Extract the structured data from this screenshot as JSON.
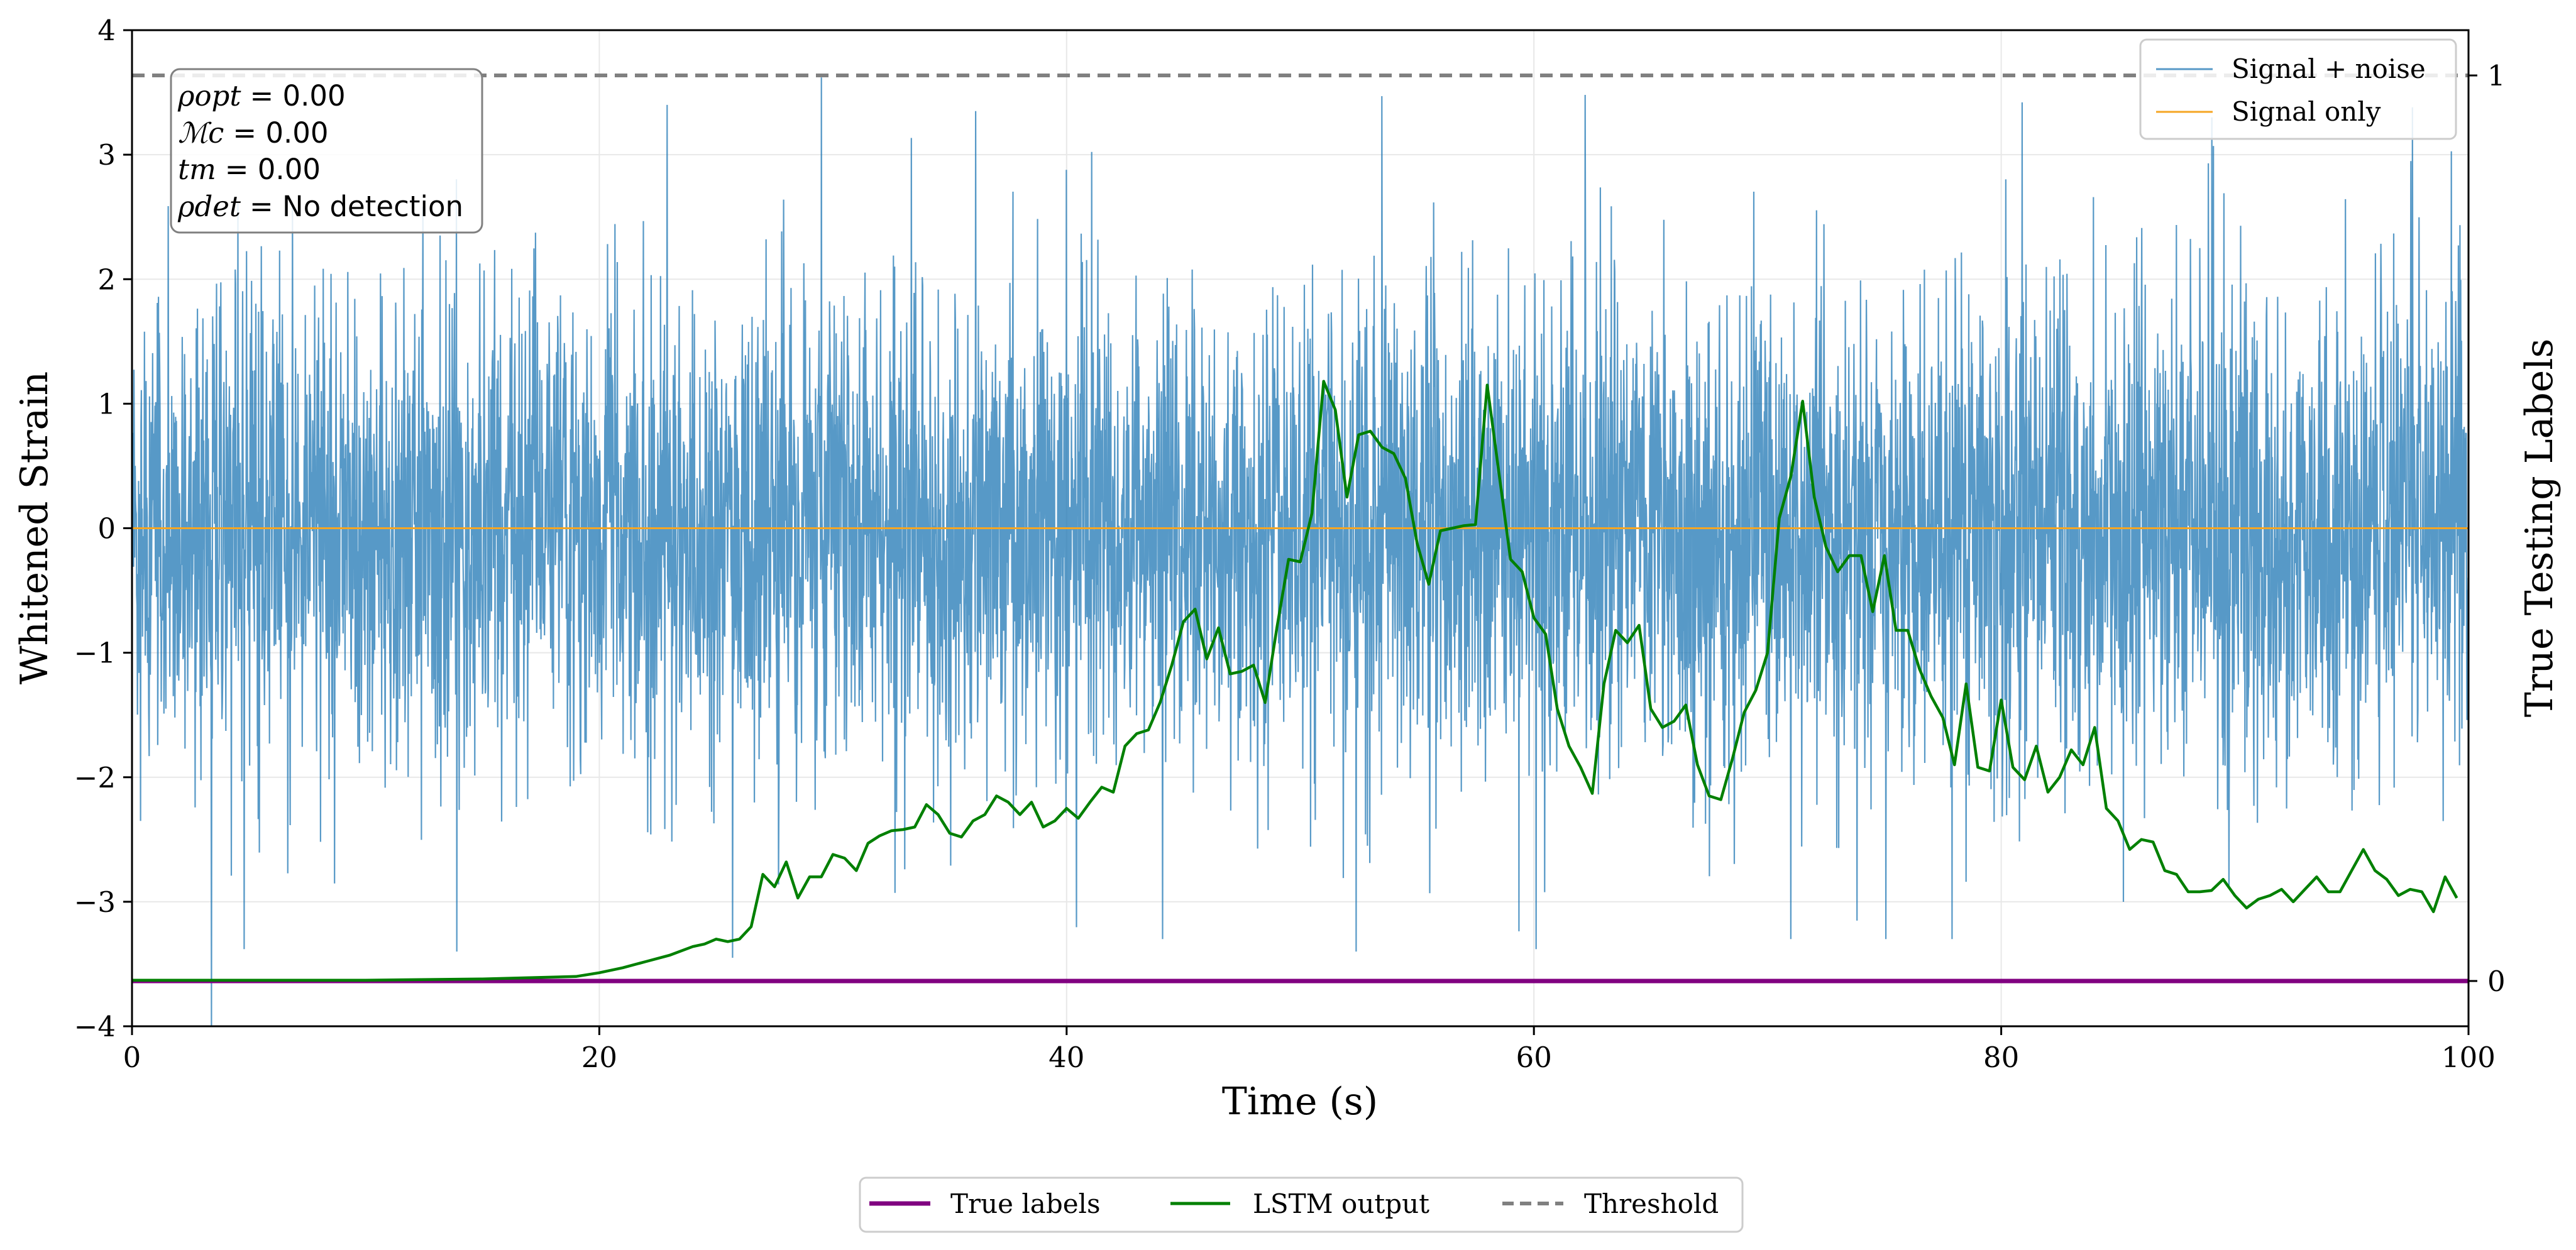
{
  "chart_data": {
    "type": "line",
    "title": "",
    "xlabel": "Time (s)",
    "ylabel": "Whitened Strain",
    "y2label": "True Testing Labels",
    "xlim": [
      0,
      100
    ],
    "ylim": [
      -4,
      4
    ],
    "y2lim": [
      -0.05,
      1.05
    ],
    "xticks": [
      0,
      20,
      40,
      60,
      80,
      100
    ],
    "xtick_labels": [
      "0",
      "20",
      "40",
      "60",
      "80",
      "100"
    ],
    "yticks": [
      -4,
      -3,
      -2,
      -1,
      0,
      1,
      2,
      3,
      4
    ],
    "ytick_labels": [
      "−4",
      "−3",
      "−2",
      "−1",
      "0",
      "1",
      "2",
      "3",
      "4"
    ],
    "y2ticks": [
      0,
      1
    ],
    "y2tick_labels": [
      "0",
      "1"
    ],
    "grid": true,
    "noise_spikes": [
      {
        "t": 3.4,
        "v": -4.0
      },
      {
        "t": 29.5,
        "v": 3.62
      },
      {
        "t": 22.9,
        "v": 3.4
      },
      {
        "t": 25.7,
        "v": -3.45
      },
      {
        "t": 60.1,
        "v": -3.38
      },
      {
        "t": 13.9,
        "v": -3.4
      },
      {
        "t": 4.8,
        "v": -3.38
      },
      {
        "t": 62.2,
        "v": 3.48
      },
      {
        "t": 71.0,
        "v": -3.3
      },
      {
        "t": 80.9,
        "v": 3.42
      },
      {
        "t": 52.4,
        "v": -3.4
      },
      {
        "t": 36.1,
        "v": 3.35
      },
      {
        "t": 97.6,
        "v": 3.38
      },
      {
        "t": 53.5,
        "v": 3.47
      },
      {
        "t": 44.1,
        "v": -3.3
      }
    ],
    "series": [
      {
        "name": "Signal + noise",
        "color": "#1f77b4",
        "axis": "left",
        "description": "dense whitened noise, time 0-100 s, values roughly within -3.5 to 3.6"
      },
      {
        "name": "Signal only",
        "color": "#f5a623",
        "axis": "left",
        "x": [
          0,
          100
        ],
        "y": [
          0,
          0
        ]
      },
      {
        "name": "True labels",
        "color": "#800080",
        "axis": "right",
        "x": [
          0,
          100
        ],
        "y": [
          0,
          0
        ]
      },
      {
        "name": "LSTM output",
        "color": "#008000",
        "axis": "left",
        "x": [
          0,
          10,
          15,
          17,
          19,
          20,
          21,
          22,
          23,
          24,
          24.5,
          25,
          25.5,
          26,
          26.5,
          27,
          27.5,
          28,
          28.5,
          29,
          29.5,
          30,
          30.5,
          31,
          31.5,
          32,
          32.5,
          33,
          33.5,
          34,
          34.5,
          35,
          35.5,
          36,
          36.5,
          37,
          37.5,
          38,
          38.5,
          39,
          39.5,
          40,
          40.5,
          41,
          41.5,
          42,
          42.5,
          43,
          43.5,
          44,
          44.5,
          45,
          45.5,
          46,
          46.5,
          47,
          47.5,
          48,
          48.5,
          49,
          49.5,
          50,
          50.5,
          51,
          51.5,
          52,
          52.5,
          53,
          53.5,
          54,
          54.5,
          55,
          55.5,
          56,
          56.5,
          57,
          57.5,
          58,
          58.5,
          59,
          59.5,
          60,
          60.5,
          61,
          61.5,
          62,
          62.5,
          63,
          63.5,
          64,
          64.5,
          65,
          65.5,
          66,
          66.5,
          67,
          67.5,
          68,
          68.5,
          69,
          69.5,
          70,
          70.5,
          71,
          71.5,
          72,
          72.5,
          73,
          73.5,
          74,
          74.5,
          75,
          75.5,
          76,
          76.5,
          77,
          77.5,
          78,
          78.5,
          79,
          79.5,
          80,
          80.5,
          81,
          81.5,
          82,
          82.5,
          83,
          83.5,
          84,
          84.5,
          85,
          85.5,
          86,
          86.5,
          87,
          87.5,
          88,
          88.5,
          89,
          89.5,
          90,
          90.5,
          91,
          91.5,
          92,
          92.5,
          93,
          93.5,
          94,
          94.5,
          95,
          95.5,
          96,
          96.5,
          97,
          97.5,
          98,
          98.5,
          99,
          99.5
        ],
        "y": [
          -3.63,
          -3.63,
          -3.62,
          -3.61,
          -3.6,
          -3.57,
          -3.53,
          -3.48,
          -3.43,
          -3.36,
          -3.34,
          -3.3,
          -3.32,
          -3.3,
          -3.2,
          -2.78,
          -2.88,
          -2.68,
          -2.97,
          -2.8,
          -2.8,
          -2.62,
          -2.65,
          -2.75,
          -2.53,
          -2.47,
          -2.43,
          -2.42,
          -2.4,
          -2.22,
          -2.3,
          -2.45,
          -2.48,
          -2.35,
          -2.3,
          -2.15,
          -2.2,
          -2.3,
          -2.2,
          -2.4,
          -2.35,
          -2.25,
          -2.33,
          -2.2,
          -2.08,
          -2.12,
          -1.75,
          -1.65,
          -1.62,
          -1.4,
          -1.1,
          -0.75,
          -0.65,
          -1.05,
          -0.8,
          -1.17,
          -1.15,
          -1.1,
          -1.4,
          -0.8,
          -0.25,
          -0.27,
          0.12,
          1.18,
          0.95,
          0.25,
          0.75,
          0.78,
          0.65,
          0.6,
          0.4,
          -0.12,
          -0.45,
          -0.02,
          0.0,
          0.02,
          0.03,
          1.15,
          0.45,
          -0.25,
          -0.35,
          -0.72,
          -0.85,
          -1.45,
          -1.75,
          -1.92,
          -2.13,
          -1.25,
          -0.82,
          -0.92,
          -0.78,
          -1.45,
          -1.6,
          -1.55,
          -1.42,
          -1.9,
          -2.15,
          -2.18,
          -1.85,
          -1.48,
          -1.3,
          -1.0,
          0.08,
          0.42,
          1.02,
          0.25,
          -0.15,
          -0.35,
          -0.22,
          -0.22,
          -0.67,
          -0.22,
          -0.82,
          -0.82,
          -1.13,
          -1.35,
          -1.52,
          -1.9,
          -1.25,
          -1.92,
          -1.95,
          -1.38,
          -1.92,
          -2.02,
          -1.75,
          -2.12,
          -2.0,
          -1.78,
          -1.9,
          -1.6,
          -2.25,
          -2.35,
          -2.58,
          -2.5,
          -2.52,
          -2.75,
          -2.78,
          -2.92,
          -2.92,
          -2.91,
          -2.82,
          -2.95,
          -3.05,
          -2.98,
          -2.95,
          -2.9,
          -3.0,
          -2.9,
          -2.8,
          -2.92,
          -2.92,
          -2.75,
          -2.58,
          -2.75,
          -2.82,
          -2.95,
          -2.9,
          -2.92,
          -3.08,
          -2.8,
          -2.97
        ]
      },
      {
        "name": "Threshold",
        "color": "#808080",
        "axis": "right",
        "dash": true,
        "x": [
          0,
          100
        ],
        "y": [
          1,
          1
        ]
      }
    ],
    "legend_inner": [
      "Signal + noise",
      "Signal only"
    ],
    "legend_inner_placement": "top-right",
    "legend_outer": [
      "True labels",
      "LSTM output",
      "Threshold"
    ],
    "legend_outer_placement": "bottom-center"
  },
  "info_box": {
    "rho_opt_label": "ρopt",
    "rho_opt_value": "= 0.00",
    "mc_label": "ℳc",
    "mc_value": "= 0.00",
    "tm_label": "tm",
    "tm_value": "= 0.00",
    "rho_det_label": "ρdet",
    "rho_det_value": "= No detection"
  }
}
